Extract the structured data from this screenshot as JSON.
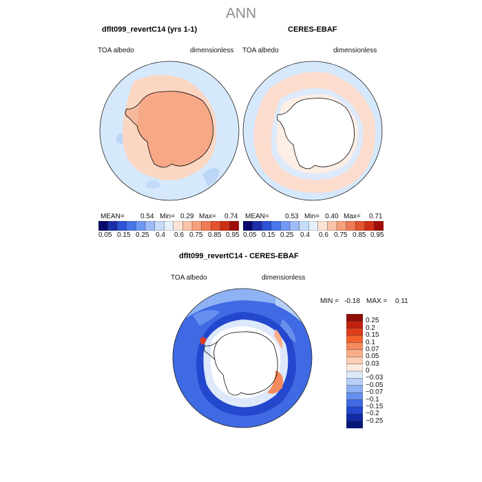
{
  "figure_title": "ANN",
  "panels": [
    {
      "title": "dflt099_revertC14 (yrs 1-1)",
      "variable": "TOA albedo",
      "units": "dimensionless",
      "stats": {
        "mean_label": "MEAN=",
        "mean": "0.54",
        "min_label": "Min=",
        "min": "0.29",
        "max_label": "Max=",
        "max": "0.74"
      }
    },
    {
      "title": "CERES-EBAF",
      "variable": "TOA albedo",
      "units": "dimensionless",
      "stats": {
        "mean_label": "MEAN=",
        "mean": "0.53",
        "min_label": "Min=",
        "min": "0.40",
        "max_label": "Max=",
        "max": "0.71"
      }
    },
    {
      "title": "dflt099_revertC14 - CERES-EBAF",
      "variable": "TOA albedo",
      "units": "dimensionless",
      "stats": {
        "min_label": "MIN =",
        "min": "-0.18",
        "max_label": "MAX =",
        "max": "0.11"
      }
    }
  ],
  "colorbar_horizontal": {
    "tick_labels": [
      "0.05",
      "0.15",
      "0.25",
      "0.4",
      "0.6",
      "0.75",
      "0.85",
      "0.95"
    ],
    "colors": [
      "#08086b",
      "#1c2ea8",
      "#2d52d6",
      "#4a76ec",
      "#6e98f2",
      "#9dbcf7",
      "#c6dcfb",
      "#e6f0fd",
      "#fde3d6",
      "#fbc3a8",
      "#f7a07d",
      "#f07a54",
      "#e4532f",
      "#cf2e16",
      "#9e0e08"
    ]
  },
  "colorbar_vertical": {
    "tick_labels": [
      "0.25",
      "0.2",
      "0.15",
      "0.1",
      "0.07",
      "0.05",
      "0.03",
      "0",
      "-0.03",
      "-0.05",
      "-0.07",
      "-0.1",
      "-0.15",
      "-0.2",
      "-0.25"
    ],
    "colors": [
      "#8e0c06",
      "#c0220e",
      "#de3d1c",
      "#f2622f",
      "#f58a5e",
      "#f8ad88",
      "#fbcfb4",
      "#fdebdf",
      "#dde9fb",
      "#b8d0f8",
      "#8eb2f3",
      "#6790ee",
      "#3f6ae3",
      "#2347cd",
      "#112ba6",
      "#061878"
    ]
  },
  "palette": {
    "background_ocean": "#d6e8fb",
    "antarctica_model": "#f7a886",
    "model_ring": "#fbd7c3",
    "obs_ring": "#fcdccd",
    "diff_negative": "#2f5fe6"
  }
}
